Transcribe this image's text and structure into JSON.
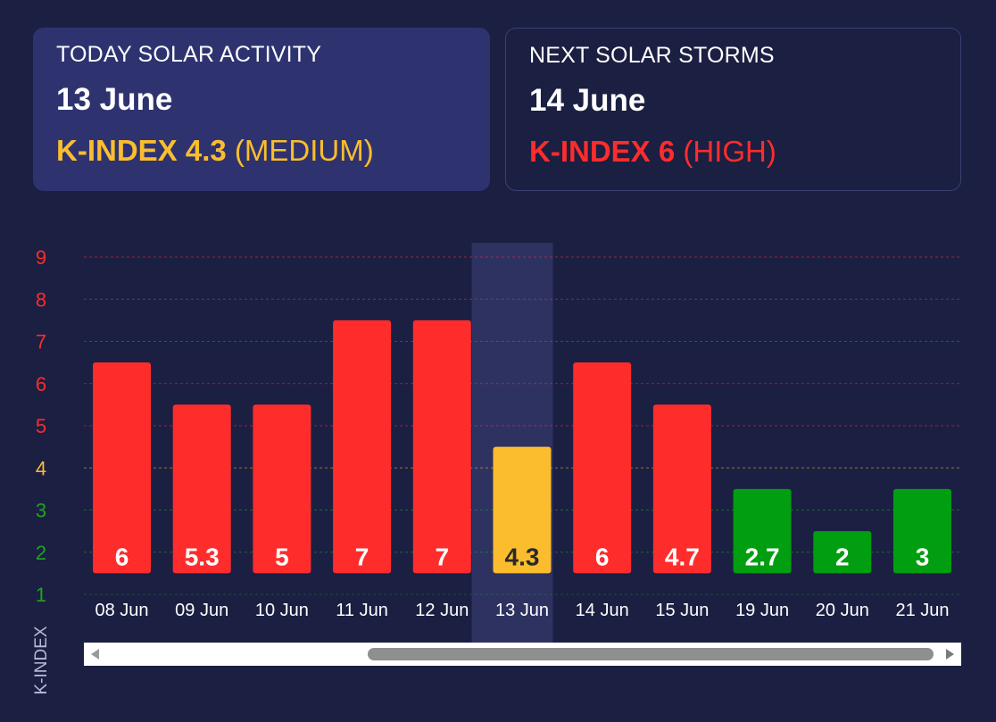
{
  "today": {
    "label": "TODAY SOLAR ACTIVITY",
    "date": "13 June",
    "kindex_label": "K-INDEX 4.3",
    "level": "(MEDIUM)",
    "color": "#fbbd2e"
  },
  "next": {
    "label": "NEXT SOLAR STORMS",
    "date": "14 June",
    "kindex_label": "K-INDEX 6",
    "level": "(HIGH)",
    "color": "#ff2c2c"
  },
  "chart_data": {
    "type": "bar",
    "categories": [
      "08 Jun",
      "09 Jun",
      "10 Jun",
      "11 Jun",
      "12 Jun",
      "13 Jun",
      "14 Jun",
      "15 Jun",
      "19 Jun",
      "20 Jun",
      "21 Jun"
    ],
    "values": [
      6,
      5.3,
      5,
      7,
      7,
      4.3,
      6,
      4.7,
      2.7,
      2,
      3
    ],
    "bar_tops": [
      6.5,
      5.5,
      5.5,
      7.5,
      7.5,
      4.5,
      6.5,
      5.5,
      3.5,
      2.5,
      3.5
    ],
    "bar_colors": [
      "#ff2c2c",
      "#ff2c2c",
      "#ff2c2c",
      "#ff2c2c",
      "#ff2c2c",
      "#fbbd2e",
      "#ff2c2c",
      "#ff2c2c",
      "#009e10",
      "#009e10",
      "#009e10"
    ],
    "label_colors": [
      "#ffffff",
      "#ffffff",
      "#ffffff",
      "#ffffff",
      "#ffffff",
      "#2a2a2a",
      "#ffffff",
      "#ffffff",
      "#ffffff",
      "#ffffff",
      "#ffffff"
    ],
    "highlight_index": 5,
    "yticks": [
      1,
      2,
      3,
      4,
      5,
      6,
      7,
      8,
      9
    ],
    "ytick_colors": [
      "#1fa51f",
      "#1fa51f",
      "#1fa51f",
      "#fbbd2e",
      "#ff2c2c",
      "#ff2c2c",
      "#ff2c2c",
      "#ff2c2c",
      "#ff2c2c"
    ],
    "ylabel": "K-INDEX",
    "ylim": [
      1,
      9
    ],
    "grid": true
  }
}
